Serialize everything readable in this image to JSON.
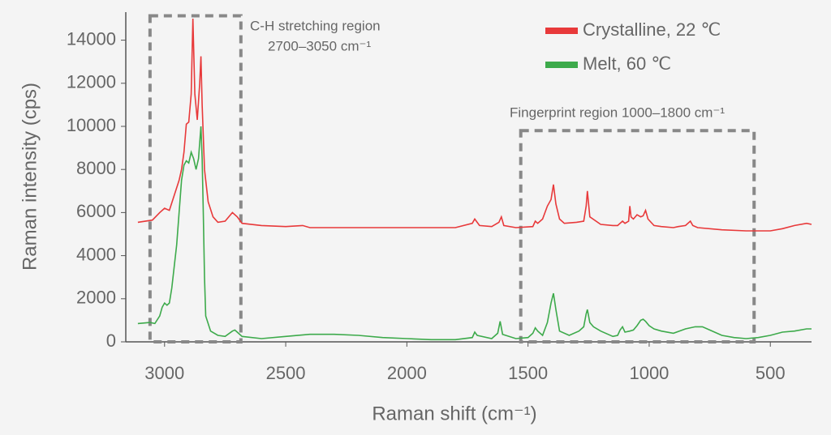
{
  "chart_data": {
    "type": "line",
    "x_label": "Raman shift (cm⁻¹)",
    "y_label": "Raman intensity (cps)",
    "xlim": [
      3160,
      330
    ],
    "xticks": [
      3000,
      2500,
      2000,
      1500,
      1000,
      500
    ],
    "ylim": [
      0,
      15300
    ],
    "yticks": [
      0,
      2000,
      4000,
      6000,
      8000,
      10000,
      12000,
      14000
    ],
    "grid": false,
    "legend": "upper right",
    "annotations": [
      "C-H stretching region",
      "2700–3050 cm⁻¹",
      "Fingerprint region 1000–1800 cm⁻¹"
    ],
    "regions": [
      {
        "x": [
          3060,
          2685
        ],
        "y": [
          0,
          15130
        ]
      },
      {
        "x": [
          1530,
          567
        ],
        "y": [
          0,
          9800
        ]
      }
    ],
    "series": [
      {
        "name": "Crystalline, 22 ℃",
        "color": "#e8393a",
        "x": [
          3110,
          3050,
          3020,
          3000,
          2980,
          2960,
          2940,
          2930,
          2920,
          2910,
          2900,
          2890,
          2883,
          2875,
          2865,
          2855,
          2850,
          2845,
          2835,
          2820,
          2800,
          2780,
          2750,
          2720,
          2700,
          2680,
          2600,
          2500,
          2430,
          2400,
          2000,
          1800,
          1730,
          1720,
          1700,
          1650,
          1620,
          1610,
          1600,
          1550,
          1480,
          1470,
          1460,
          1440,
          1420,
          1405,
          1395,
          1385,
          1370,
          1350,
          1300,
          1270,
          1260,
          1255,
          1245,
          1200,
          1150,
          1130,
          1120,
          1110,
          1100,
          1085,
          1080,
          1075,
          1065,
          1050,
          1035,
          1025,
          1015,
          1005,
          980,
          950,
          900,
          880,
          850,
          830,
          820,
          800,
          700,
          600,
          500,
          450,
          400,
          350,
          330
        ],
        "values": [
          5550,
          5650,
          6000,
          6200,
          6100,
          6800,
          7500,
          8000,
          8800,
          10100,
          10200,
          11500,
          15000,
          11500,
          10300,
          12000,
          13250,
          11000,
          8000,
          6500,
          5800,
          5550,
          5600,
          6000,
          5800,
          5500,
          5400,
          5350,
          5400,
          5300,
          5300,
          5300,
          5500,
          5700,
          5400,
          5350,
          5550,
          5800,
          5400,
          5300,
          5350,
          5600,
          5500,
          5700,
          6300,
          6600,
          7300,
          6400,
          5700,
          5500,
          5550,
          5600,
          6300,
          7000,
          5800,
          5450,
          5400,
          5400,
          5500,
          5600,
          5500,
          5600,
          6300,
          5800,
          5700,
          5900,
          5800,
          5850,
          6100,
          5700,
          5400,
          5350,
          5300,
          5350,
          5400,
          5600,
          5400,
          5300,
          5200,
          5150,
          5150,
          5250,
          5400,
          5500,
          5450
        ]
      },
      {
        "name": "Melt, 60 ℃",
        "color": "#3daa4b",
        "x": [
          3110,
          3060,
          3040,
          3020,
          3010,
          3000,
          2990,
          2980,
          2970,
          2960,
          2950,
          2940,
          2930,
          2920,
          2910,
          2900,
          2890,
          2880,
          2870,
          2860,
          2850,
          2845,
          2840,
          2835,
          2830,
          2810,
          2780,
          2750,
          2720,
          2710,
          2700,
          2680,
          2600,
          2500,
          2400,
          2300,
          2200,
          2100,
          2000,
          1900,
          1800,
          1730,
          1720,
          1710,
          1650,
          1625,
          1615,
          1605,
          1550,
          1500,
          1480,
          1470,
          1460,
          1440,
          1420,
          1405,
          1395,
          1385,
          1370,
          1330,
          1290,
          1270,
          1260,
          1255,
          1245,
          1230,
          1200,
          1150,
          1130,
          1120,
          1110,
          1100,
          1080,
          1065,
          1050,
          1035,
          1025,
          1015,
          1000,
          980,
          950,
          900,
          850,
          810,
          780,
          750,
          700,
          650,
          600,
          550,
          500,
          450,
          400,
          350,
          330
        ],
        "values": [
          850,
          900,
          850,
          1200,
          1600,
          1800,
          1700,
          1800,
          2500,
          3500,
          4500,
          6000,
          7500,
          8200,
          8400,
          8300,
          8800,
          8500,
          8000,
          8500,
          10000,
          8500,
          6000,
          3000,
          1200,
          500,
          300,
          250,
          500,
          550,
          450,
          250,
          150,
          250,
          350,
          350,
          300,
          200,
          150,
          100,
          100,
          200,
          450,
          300,
          150,
          400,
          950,
          350,
          150,
          200,
          400,
          650,
          500,
          300,
          900,
          1800,
          2250,
          1500,
          500,
          300,
          500,
          700,
          1300,
          1500,
          900,
          700,
          500,
          250,
          300,
          550,
          700,
          450,
          500,
          550,
          750,
          1000,
          1050,
          950,
          750,
          600,
          500,
          400,
          600,
          700,
          700,
          550,
          300,
          200,
          150,
          200,
          300,
          450,
          500,
          600,
          600
        ]
      }
    ]
  }
}
